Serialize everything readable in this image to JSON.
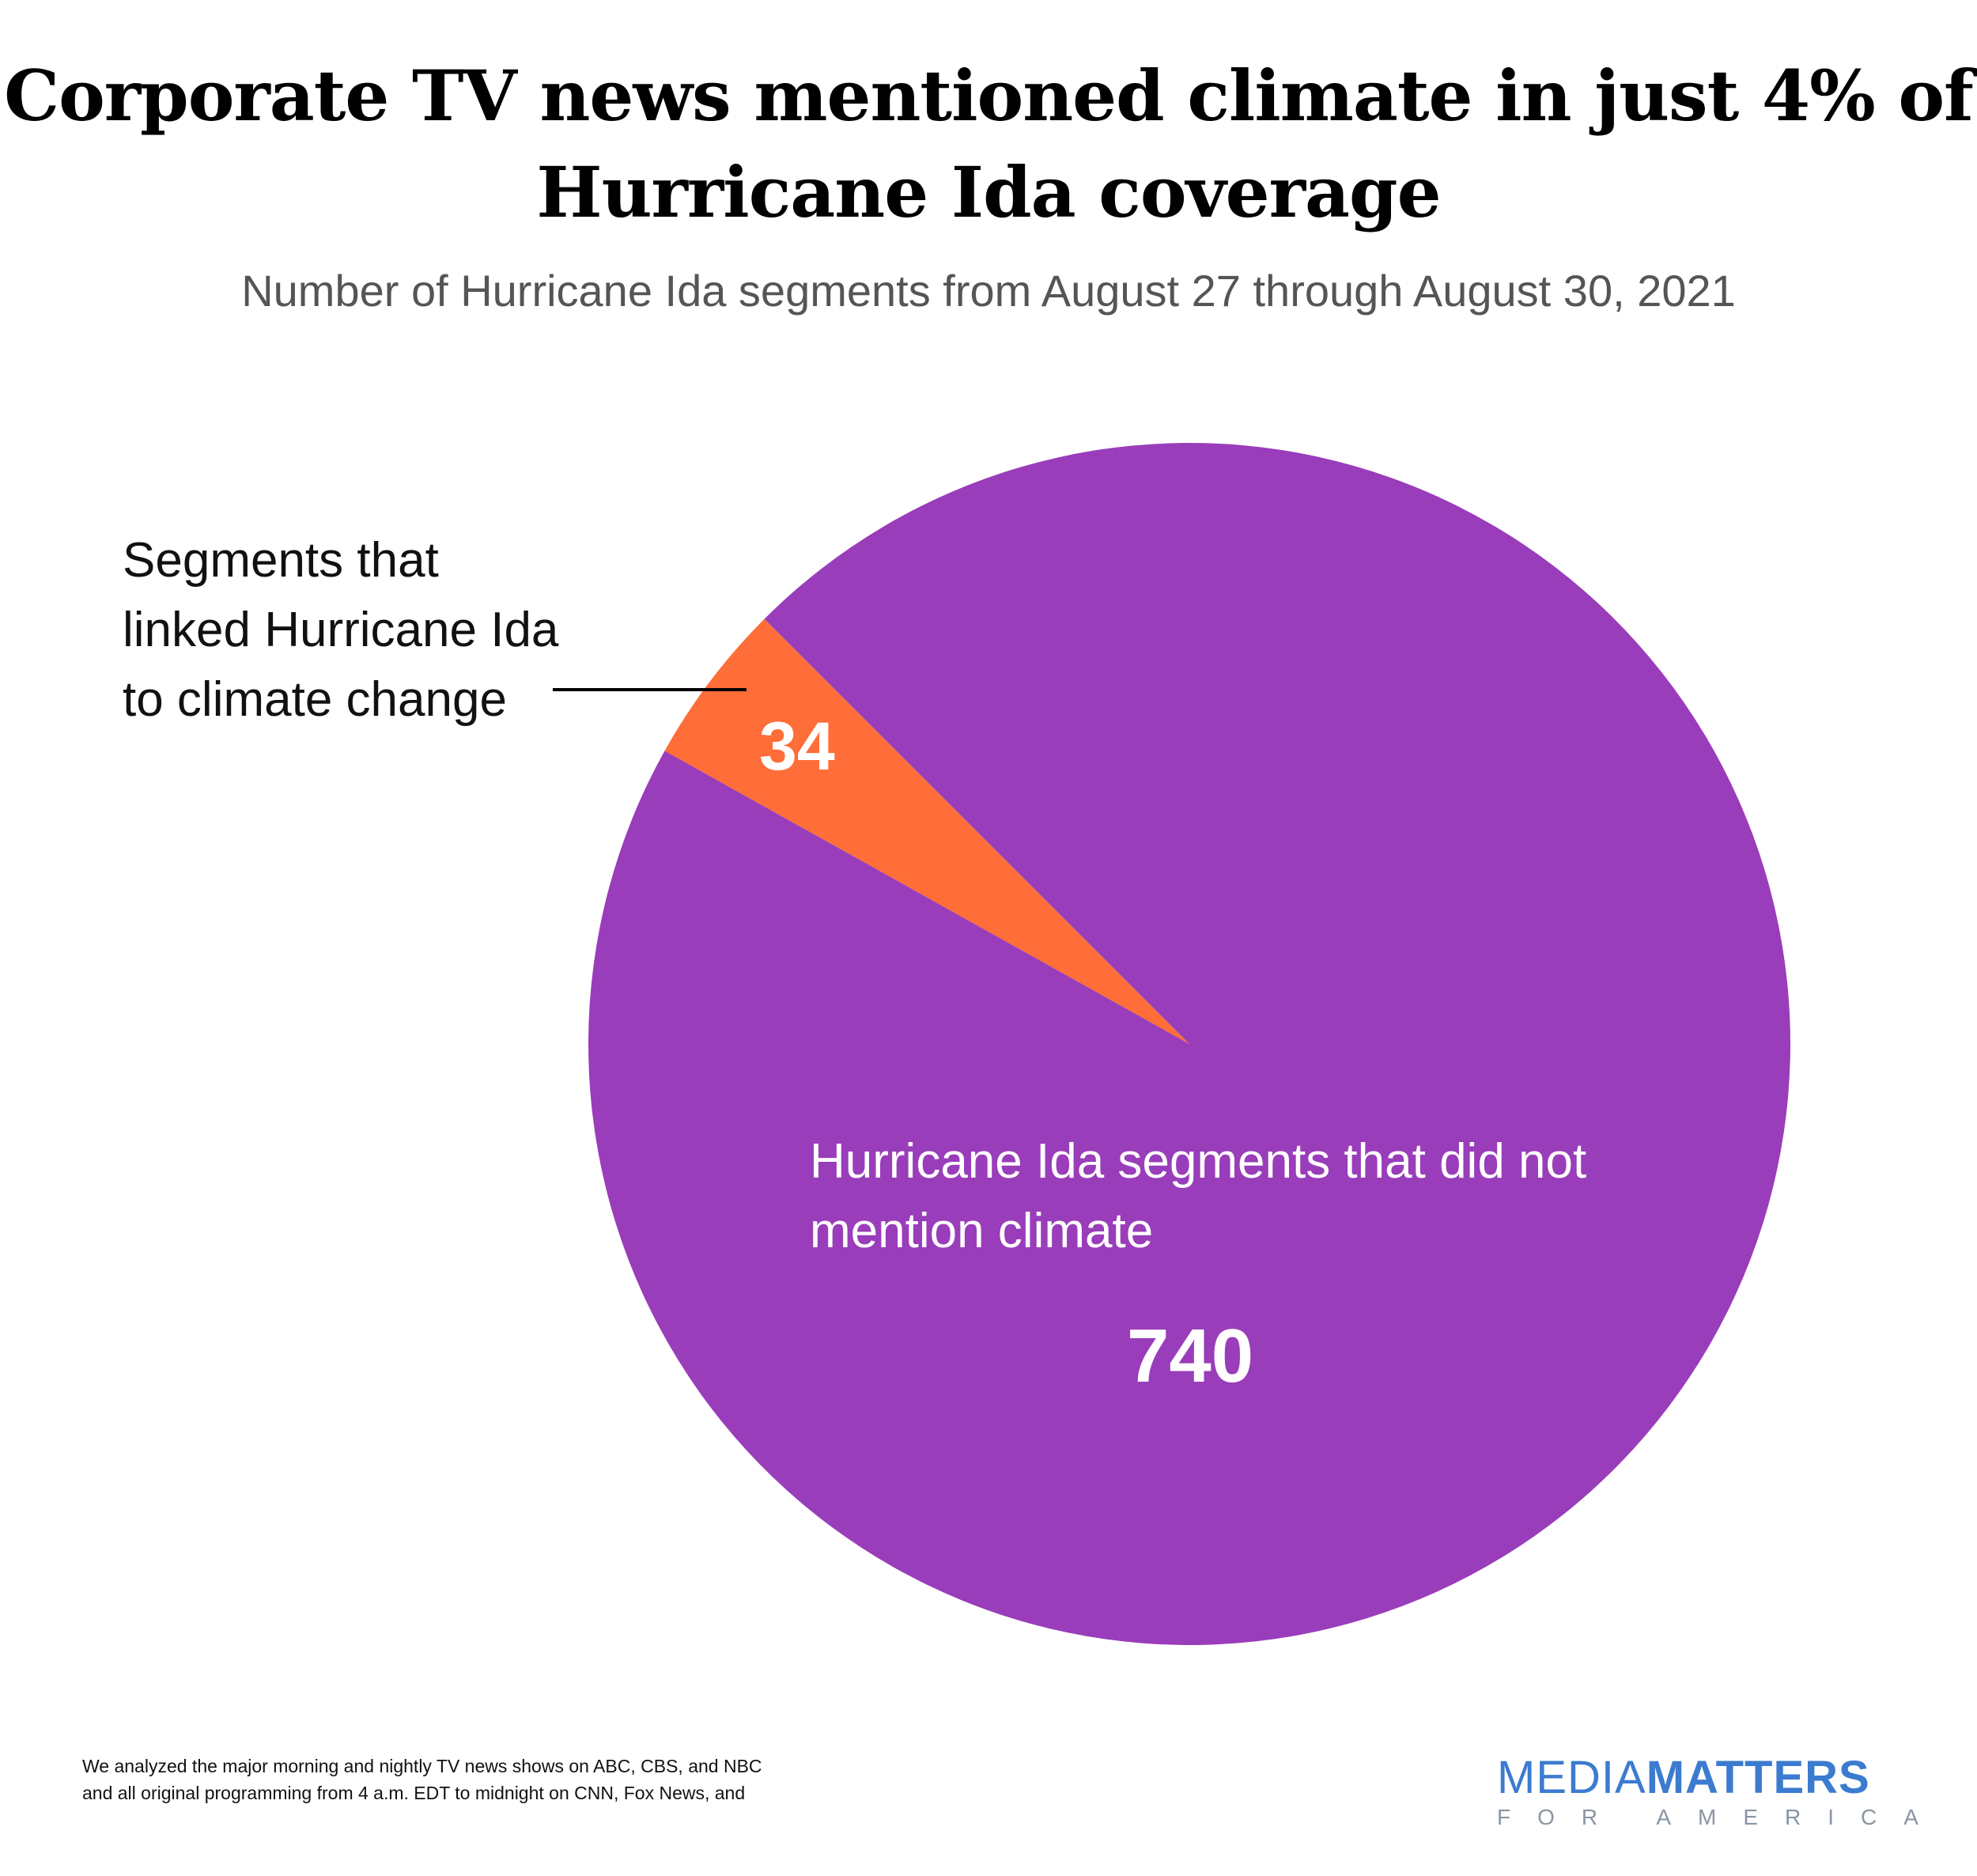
{
  "chart_data": {
    "type": "pie",
    "title": "Corporate TV news mentioned climate in just 4% of Hurricane Ida coverage",
    "subtitle": "Number of Hurricane Ida segments from August 27 through August 30, 2021",
    "slices": [
      {
        "label": "Hurricane Ida segments that did not mention climate",
        "value": 740,
        "color": "#993dba"
      },
      {
        "label": "Segments that linked Hurricane Ida to climate change",
        "value": 34,
        "color": "#ff6d38"
      }
    ],
    "value_labels": [
      "740",
      "34"
    ]
  },
  "footnote": {
    "line1": "We analyzed the major morning and nightly TV news shows on ABC, CBS, and NBC",
    "line2": "and all original programming from 4 a.m. EDT to midnight on CNN, Fox News, and"
  },
  "logo": {
    "media": "MEDIA",
    "matters": "MATTERS",
    "for_america": "FOR AMERICA"
  }
}
